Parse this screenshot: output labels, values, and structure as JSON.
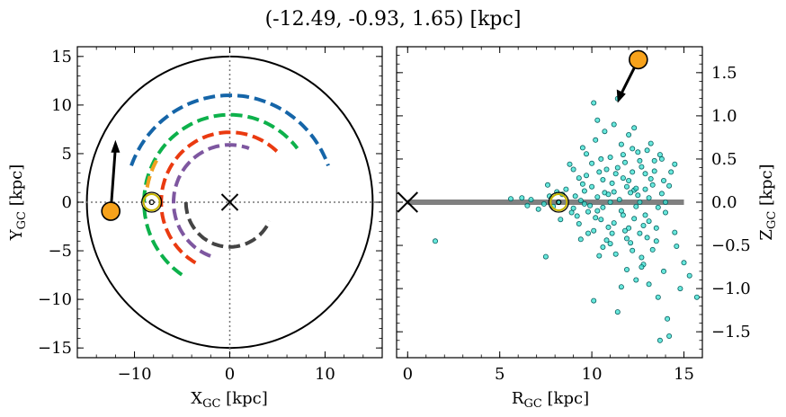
{
  "title": "(-12.49, -0.93, 1.65) [kpc]",
  "chart_data": [
    {
      "type": "line",
      "name": "galactic-plane-xy",
      "xlabel": "X",
      "xlabel_sub": "GC",
      "xlabel_unit": " [kpc]",
      "ylabel": "Y",
      "ylabel_sub": "GC",
      "ylabel_unit": " [kpc]",
      "xlim": [
        -16,
        16
      ],
      "ylim": [
        -16,
        16
      ],
      "xticks": [
        -10,
        0,
        10
      ],
      "yticks": [
        -15,
        -10,
        -5,
        0,
        5,
        10,
        15
      ],
      "xtick_labels": [
        "−10",
        "0",
        "10"
      ],
      "ytick_labels": [
        "−15",
        "−10",
        "−5",
        "0",
        "5",
        "10",
        "15"
      ],
      "boundary_circle": {
        "cx": 0,
        "cy": 0,
        "r": 15,
        "color": "#000000"
      },
      "reference_lines": {
        "x": 0,
        "y": 0,
        "style": "dotted",
        "color": "#777777"
      },
      "arcs": [
        {
          "color": "#1565a8",
          "r": 11.0,
          "theta_start_deg": 160,
          "theta_end_deg": 20
        },
        {
          "color": "#0db14b",
          "r": 9.0,
          "theta_start_deg": 236,
          "theta_end_deg": 38
        },
        {
          "color": "#f0a020",
          "r": 8.8,
          "theta_start_deg": 170,
          "theta_end_deg": 150
        },
        {
          "color": "#ea3a10",
          "r": 7.2,
          "theta_start_deg": 240,
          "theta_end_deg": 44
        },
        {
          "color": "#7e57a0",
          "r": 5.9,
          "theta_start_deg": 250,
          "theta_end_deg": 70
        },
        {
          "color": "#444444",
          "r": 4.6,
          "theta_start_deg": 180,
          "theta_end_deg": 335
        }
      ],
      "galactic_center": {
        "x": 0,
        "y": 0,
        "marker": "x"
      },
      "sun": {
        "x": -8.2,
        "y": 0.0,
        "color": "#c8b400"
      },
      "object": {
        "x": -12.49,
        "y": -0.93,
        "color": "#f7a21b"
      },
      "velocity_arrow": {
        "from": [
          -12.49,
          -0.93
        ],
        "to": [
          -12.0,
          6.4
        ]
      }
    },
    {
      "type": "scatter",
      "name": "r-z-plane",
      "xlabel": "R",
      "xlabel_sub": "GC",
      "xlabel_unit": " [kpc]",
      "ylabel": "Z",
      "ylabel_sub": "GC",
      "ylabel_unit": " [kpc]",
      "xlim": [
        -0.6,
        16
      ],
      "ylim": [
        -1.8,
        1.8
      ],
      "xticks": [
        0,
        5,
        10,
        15
      ],
      "yticks": [
        -1.5,
        -1.0,
        -0.5,
        0.0,
        0.5,
        1.0,
        1.5
      ],
      "xtick_labels": [
        "0",
        "5",
        "10",
        "15"
      ],
      "ytick_labels": [
        "−1.5",
        "−1.0",
        "−0.5",
        "0.0",
        "0.5",
        "1.0",
        "1.5"
      ],
      "disk_line": {
        "x": [
          0,
          15
        ],
        "z": 0,
        "color": "#808080"
      },
      "points_color": "#35e0d0",
      "points_edge": "#0a6060",
      "points": [
        [
          8.2,
          0.0
        ],
        [
          12.3,
          0.14
        ],
        [
          9.8,
          -0.11
        ],
        [
          11.2,
          0.12
        ],
        [
          7.9,
          -0.05
        ],
        [
          10.6,
          0.26
        ],
        [
          13.1,
          -0.22
        ],
        [
          6.7,
          0.03
        ],
        [
          11.8,
          -0.33
        ],
        [
          9.1,
          0.07
        ],
        [
          12.7,
          0.41
        ],
        [
          10.2,
          -0.18
        ],
        [
          8.6,
          0.15
        ],
        [
          11.5,
          0.03
        ],
        [
          13.6,
          -0.06
        ],
        [
          7.4,
          -0.02
        ],
        [
          12.1,
          -0.47
        ],
        [
          9.5,
          0.21
        ],
        [
          10.9,
          -0.29
        ],
        [
          14.2,
          0.19
        ],
        [
          11.0,
          0.52
        ],
        [
          8.9,
          -0.12
        ],
        [
          12.5,
          0.08
        ],
        [
          10.4,
          0.35
        ],
        [
          13.0,
          -0.41
        ],
        [
          6.2,
          0.05
        ],
        [
          9.9,
          -0.04
        ],
        [
          11.7,
          0.28
        ],
        [
          12.9,
          -0.15
        ],
        [
          10.7,
          0.11
        ],
        [
          5.6,
          0.04
        ],
        [
          14.5,
          -0.35
        ],
        [
          13.4,
          0.36
        ],
        [
          11.3,
          -0.6
        ],
        [
          9.3,
          -0.25
        ],
        [
          12.2,
          0.62
        ],
        [
          10.0,
          0.18
        ],
        [
          8.4,
          0.09
        ],
        [
          12.8,
          -0.27
        ],
        [
          11.9,
          0.18
        ],
        [
          7.1,
          -0.08
        ],
        [
          13.8,
          0.1
        ],
        [
          10.8,
          -0.44
        ],
        [
          9.7,
          0.31
        ],
        [
          12.4,
          -0.05
        ],
        [
          11.4,
          0.4
        ],
        [
          13.3,
          -0.55
        ],
        [
          10.3,
          0.06
        ],
        [
          14.0,
          -0.12
        ],
        [
          12.0,
          0.25
        ],
        [
          9.2,
          -0.16
        ],
        [
          11.6,
          -0.1
        ],
        [
          8.1,
          0.12
        ],
        [
          12.6,
          -0.36
        ],
        [
          10.5,
          -0.2
        ],
        [
          13.7,
          0.55
        ],
        [
          11.1,
          0.22
        ],
        [
          9.6,
          0.13
        ],
        [
          12.3,
          -0.19
        ],
        [
          10.1,
          -0.33
        ],
        [
          14.6,
          -0.51
        ],
        [
          13.2,
          0.27
        ],
        [
          11.8,
          0.46
        ],
        [
          9.0,
          -0.07
        ],
        [
          12.9,
          0.33
        ],
        [
          10.6,
          -0.06
        ],
        [
          7.7,
          0.07
        ],
        [
          11.2,
          -0.24
        ],
        [
          13.5,
          -0.3
        ],
        [
          12.1,
          0.11
        ],
        [
          6.5,
          -0.04
        ],
        [
          10.9,
          0.09
        ],
        [
          9.4,
          0.02
        ],
        [
          12.7,
          -0.64
        ],
        [
          11.6,
          0.67
        ],
        [
          13.9,
          -0.8
        ],
        [
          14.3,
          0.35
        ],
        [
          12.4,
          -0.9
        ],
        [
          13.1,
          -0.95
        ],
        [
          14.8,
          -1.0
        ],
        [
          15.0,
          -0.7
        ],
        [
          12.8,
          -0.72
        ],
        [
          13.6,
          -1.1
        ],
        [
          14.1,
          -1.35
        ],
        [
          11.9,
          -0.78
        ],
        [
          15.3,
          -0.85
        ],
        [
          10.4,
          -0.62
        ],
        [
          13.2,
          0.68
        ],
        [
          12.0,
          0.78
        ],
        [
          11.2,
          0.9
        ],
        [
          10.2,
          0.72
        ],
        [
          12.5,
          0.58
        ],
        [
          13.8,
          0.5
        ],
        [
          11.7,
          0.55
        ],
        [
          9.7,
          0.56
        ],
        [
          11.4,
          1.2
        ],
        [
          10.1,
          1.15
        ],
        [
          10.3,
          0.95
        ],
        [
          12.7,
          -0.75
        ],
        [
          15.7,
          -1.1
        ],
        [
          13.7,
          -1.6
        ],
        [
          14.2,
          -1.55
        ],
        [
          10.1,
          -1.14
        ],
        [
          11.4,
          -1.27
        ],
        [
          11.6,
          -0.98
        ],
        [
          9.5,
          0.63
        ],
        [
          7.5,
          -0.63
        ],
        [
          1.5,
          -0.45
        ],
        [
          13.4,
          0.48
        ],
        [
          12.2,
          -0.56
        ],
        [
          10.7,
          0.82
        ],
        [
          11.0,
          -0.48
        ],
        [
          9.4,
          -0.43
        ],
        [
          12.3,
          0.86
        ],
        [
          14.5,
          0.44
        ],
        [
          13.0,
          0.6
        ],
        [
          10.6,
          -0.52
        ],
        [
          9.0,
          0.38
        ],
        [
          11.9,
          -0.42
        ],
        [
          8.8,
          0.44
        ],
        [
          13.3,
          0.2
        ],
        [
          12.6,
          0.48
        ],
        [
          10.0,
          0.45
        ],
        [
          12.4,
          0.16
        ],
        [
          11.1,
          -0.36
        ],
        [
          9.8,
          -0.36
        ],
        [
          12.9,
          0.15
        ],
        [
          10.5,
          0.5
        ],
        [
          13.5,
          -0.45
        ],
        [
          11.3,
          0.33
        ],
        [
          14.0,
          0.0
        ],
        [
          12.0,
          -0.3
        ],
        [
          10.8,
          0.38
        ],
        [
          13.9,
          0.25
        ],
        [
          12.2,
          0.35
        ],
        [
          9.3,
          0.28
        ],
        [
          11.7,
          -0.15
        ],
        [
          10.3,
          -0.1
        ],
        [
          8.3,
          -0.2
        ],
        [
          7.6,
          0.2
        ],
        [
          12.6,
          0.0
        ],
        [
          11.0,
          0.0
        ],
        [
          9.6,
          -0.02
        ],
        [
          13.1,
          0.05
        ]
      ]
    }
  ]
}
